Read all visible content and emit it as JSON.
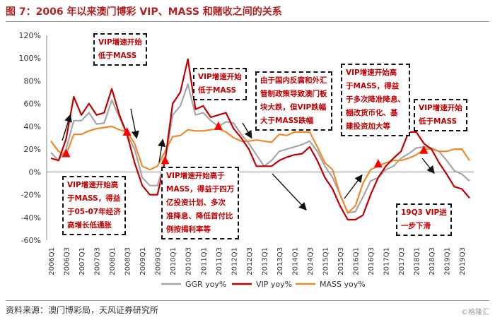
{
  "title": "图 7：2006 年以来澳门博彩 VIP、MASS 和赌收之间的关系",
  "source": "资料来源：澳门博彩局，天风证券研究所",
  "watermark": "©格隆汇",
  "colors": {
    "ggr": "#a6a6a6",
    "vip": "#c00000",
    "mass": "#ed8a2c",
    "annotation": "#c00000",
    "title": "#b22222"
  },
  "chart_data": {
    "type": "line",
    "x": [
      "2006Q1",
      "2006Q2",
      "2006Q3",
      "2006Q4",
      "2007Q1",
      "2007Q2",
      "2007Q3",
      "2007Q4",
      "2008Q1",
      "2008Q2",
      "2008Q3",
      "2008Q4",
      "2009Q1",
      "2009Q2",
      "2009Q3",
      "2009Q4",
      "2010Q1",
      "2010Q2",
      "2010Q3",
      "2010Q4",
      "2011Q1",
      "2011Q2",
      "2011Q3",
      "2011Q4",
      "2012Q1",
      "2012Q2",
      "2012Q3",
      "2012Q4",
      "2013Q1",
      "2013Q2",
      "2013Q3",
      "2013Q4",
      "2014Q1",
      "2014Q2",
      "2014Q3",
      "2014Q4",
      "2015Q1",
      "2015Q2",
      "2015Q3",
      "2015Q4",
      "2016Q1",
      "2016Q2",
      "2016Q3",
      "2016Q4",
      "2017Q1",
      "2017Q2",
      "2017Q3",
      "2017Q4",
      "2018Q1",
      "2018Q2",
      "2018Q3",
      "2018Q4",
      "2019Q1",
      "2019Q2",
      "2019Q3",
      "2019Q4"
    ],
    "x_ticks": [
      "2006Q1",
      "2006Q3",
      "2007Q1",
      "2007Q3",
      "2008Q1",
      "2008Q3",
      "2009Q1",
      "2009Q3",
      "2010Q1",
      "2010Q3",
      "2011Q1",
      "2011Q3",
      "2012Q1",
      "2012Q3",
      "2013Q1",
      "2013Q3",
      "2014Q1",
      "2014Q3",
      "2015Q1",
      "2015Q3",
      "2016Q1",
      "2016Q3",
      "2017Q1",
      "2017Q3",
      "2018Q1",
      "2018Q3",
      "2019Q1",
      "2019Q3"
    ],
    "y_ticks": [
      "120%",
      "100%",
      "80%",
      "60%",
      "40%",
      "20%",
      "0%",
      "-20%",
      "-40%",
      "-60%"
    ],
    "ylim": [
      -60,
      120
    ],
    "series": [
      {
        "name": "GGR yoy%",
        "values": [
          17,
          10,
          20,
          45,
          45,
          52,
          42,
          43,
          63,
          48,
          33,
          20,
          -5,
          -12,
          -12,
          10,
          50,
          58,
          77,
          50,
          52,
          45,
          40,
          44,
          43,
          33,
          25,
          15,
          5,
          10,
          18,
          20,
          22,
          24,
          27,
          18,
          5,
          -5,
          -20,
          -36,
          -35,
          -22,
          -8,
          -5,
          2,
          5,
          12,
          16,
          21,
          22,
          21,
          18,
          10,
          1,
          -2,
          -8
        ]
      },
      {
        "name": "VIP yoy%",
        "values": [
          12,
          10,
          29,
          66,
          50,
          60,
          50,
          52,
          73,
          50,
          33,
          8,
          -12,
          -20,
          -20,
          10,
          60,
          70,
          99,
          55,
          58,
          48,
          50,
          52,
          38,
          30,
          20,
          5,
          5,
          5,
          10,
          13,
          15,
          16,
          22,
          10,
          -5,
          -15,
          -30,
          -42,
          -42,
          -38,
          -20,
          -5,
          5,
          12,
          18,
          35,
          35,
          25,
          20,
          8,
          -2,
          -13,
          -15,
          -23
        ]
      },
      {
        "name": "MASS yoy%",
        "values": [
          27,
          18,
          15,
          33,
          33,
          36,
          38,
          39,
          40,
          37,
          35,
          25,
          5,
          2,
          5,
          18,
          31,
          32,
          37,
          36,
          36,
          37,
          38,
          35,
          30,
          27,
          27,
          28,
          27,
          26,
          33,
          32,
          35,
          35,
          35,
          22,
          8,
          2,
          -20,
          -36,
          -30,
          -10,
          2,
          5,
          8,
          10,
          10,
          12,
          15,
          20,
          20,
          18,
          18,
          20,
          20,
          10
        ]
      }
    ],
    "legend": [
      "GGR yoy%",
      "VIP yoy%",
      "MASS yoy%"
    ],
    "legend_position": "bottom",
    "markers": [
      {
        "shape": "triangle",
        "color": "#ff0000",
        "x": "2006Q3",
        "y": 16
      },
      {
        "shape": "triangle",
        "color": "#ff0000",
        "x": "2008Q3",
        "y": 35
      },
      {
        "shape": "triangle",
        "color": "#ff0000",
        "x": "2009Q4",
        "y": 10
      },
      {
        "shape": "triangle",
        "color": "#ff0000",
        "x": "2011Q3",
        "y": 40
      },
      {
        "shape": "triangle",
        "color": "#ff0000",
        "x": "2016Q4",
        "y": 7
      },
      {
        "shape": "triangle",
        "color": "#ff0000",
        "x": "2018Q2",
        "y": 19
      }
    ],
    "annotations": [
      {
        "text": "VIP增速开始\n低于MASS"
      },
      {
        "text": "VIP增速开始\n低于MASS"
      },
      {
        "text": "由于国内反腐和外汇\n管制政策导致澳门板\n块大跌，但VIP跌幅\n大于MASS跌幅"
      },
      {
        "text": "VIP增速开始高\n于MASS，得益\n于多次降准降息、\n棚改货币化、基\n建投资加大等"
      },
      {
        "text": "VIP增速开始\n低于MASS"
      },
      {
        "text": "VIP增速开始高\n于MASS，得益\n于05-07年经济\n高增长低通胀"
      },
      {
        "text": "VIP增速开始高于\nMASS，得益于四万\n亿投资计划、多次\n准降息、降低首付比\n例按揭利率等"
      },
      {
        "text": "19Q3 VIP进\n一步下滑"
      }
    ]
  }
}
